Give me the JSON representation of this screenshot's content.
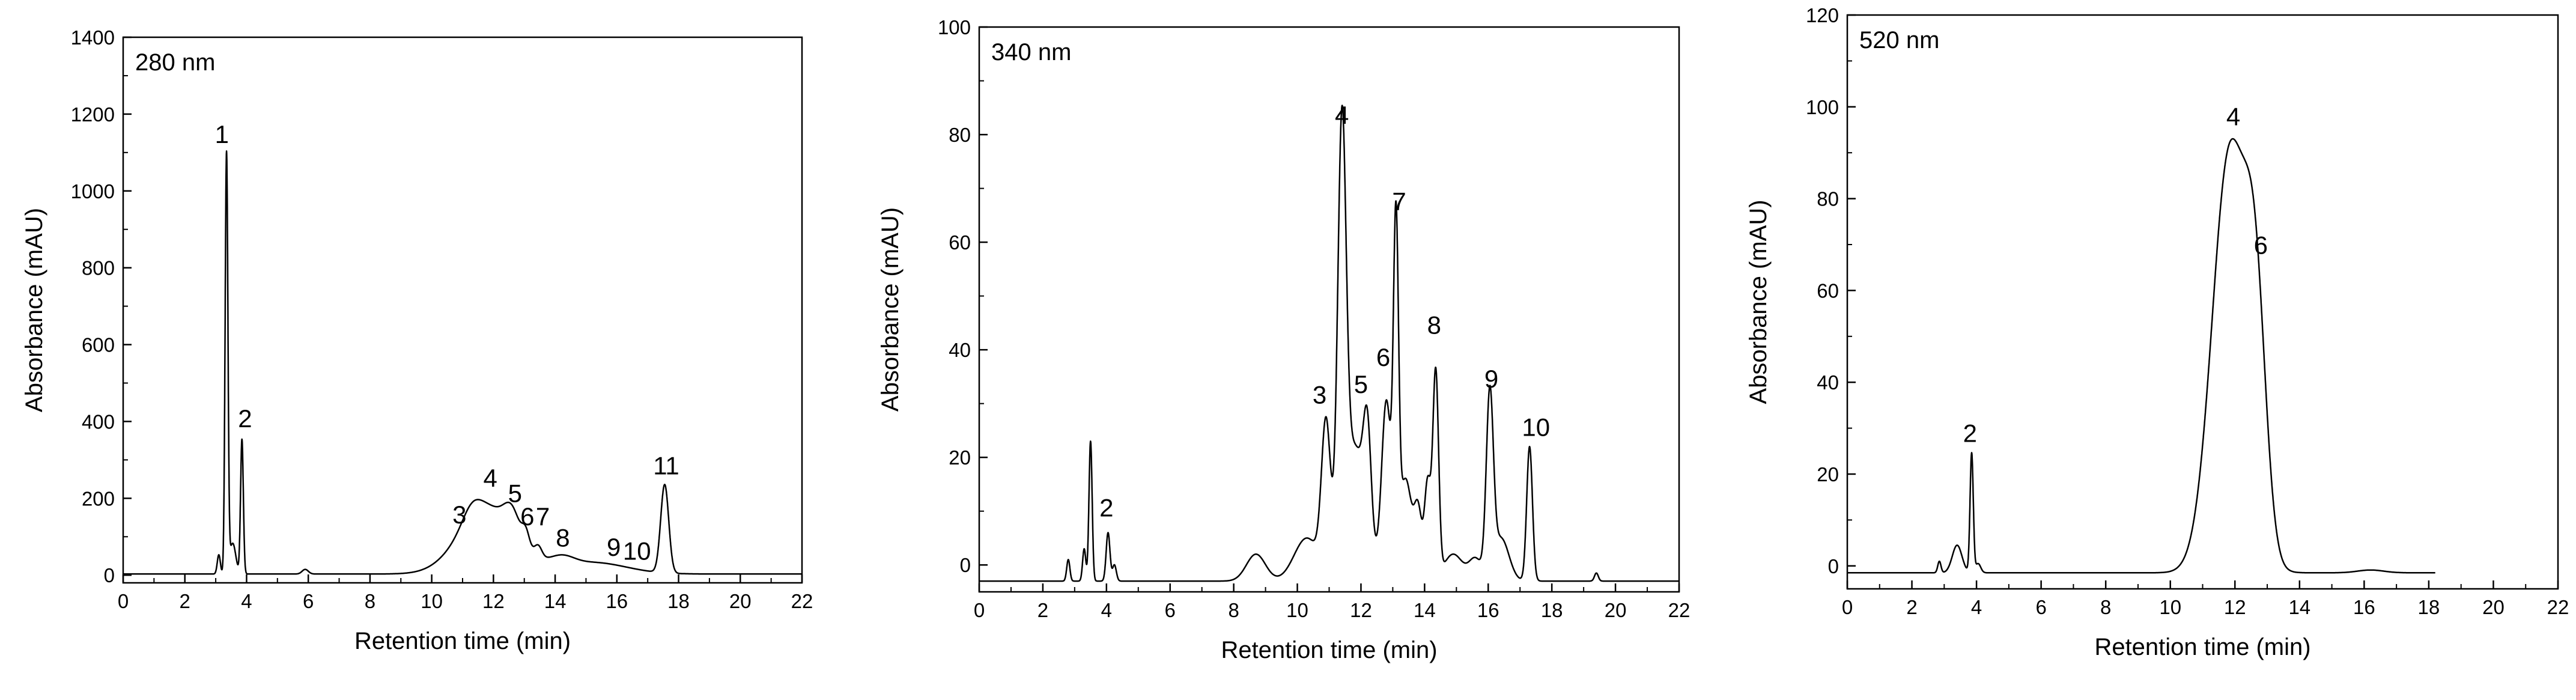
{
  "figure": {
    "colors": {
      "line": "#000000",
      "axis": "#000000",
      "background": "#ffffff"
    }
  },
  "chart_data": [
    {
      "type": "line",
      "panel_label": "280 nm",
      "xlabel": "Retention time (min)",
      "ylabel": "Absorbance (mAU)",
      "xlim": [
        0,
        22
      ],
      "ylim": [
        -20,
        1400
      ],
      "xticks": [
        0,
        2,
        4,
        6,
        8,
        10,
        12,
        14,
        16,
        18,
        20,
        22
      ],
      "yticks": [
        0,
        200,
        400,
        600,
        800,
        1000,
        1200,
        1400
      ],
      "grid": false,
      "baseline": 3,
      "peaks": [
        {
          "x": 3.1,
          "y": 50,
          "w": 0.05
        },
        {
          "x": 3.35,
          "y": 1090,
          "w": 0.045
        },
        {
          "x": 3.55,
          "y": 80,
          "w": 0.1
        },
        {
          "x": 3.85,
          "y": 350,
          "w": 0.045
        },
        {
          "x": 5.9,
          "y": 12,
          "w": 0.1
        },
        {
          "x": 11.8,
          "y": 175,
          "w": 0.9
        },
        {
          "x": 11.3,
          "y": 35,
          "w": 0.3
        },
        {
          "x": 12.6,
          "y": 60,
          "w": 0.25
        },
        {
          "x": 13.05,
          "y": 40,
          "w": 0.12
        },
        {
          "x": 13.45,
          "y": 30,
          "w": 0.12
        },
        {
          "x": 14.2,
          "y": 25,
          "w": 0.4
        },
        {
          "x": 15.2,
          "y": 30,
          "w": 1.1
        },
        {
          "x": 17.55,
          "y": 230,
          "w": 0.13
        }
      ],
      "annotations": [
        {
          "text": "1",
          "x": 3.2,
          "y": 1125
        },
        {
          "text": "2",
          "x": 3.95,
          "y": 385
        },
        {
          "text": "3",
          "x": 10.9,
          "y": 135
        },
        {
          "text": "4",
          "x": 11.9,
          "y": 230
        },
        {
          "text": "5",
          "x": 12.7,
          "y": 190
        },
        {
          "text": "6",
          "x": 13.1,
          "y": 130
        },
        {
          "text": "7",
          "x": 13.6,
          "y": 130
        },
        {
          "text": "8",
          "x": 14.25,
          "y": 75
        },
        {
          "text": "9",
          "x": 15.9,
          "y": 50
        },
        {
          "text": "10",
          "x": 16.65,
          "y": 40
        },
        {
          "text": "11",
          "x": 17.6,
          "y": 262
        }
      ]
    },
    {
      "type": "line",
      "panel_label": "340 nm",
      "xlabel": "Retention time (min)",
      "ylabel": "Absorbance (mAU)",
      "xlim": [
        0,
        22
      ],
      "ylim": [
        -5,
        100
      ],
      "xticks": [
        0,
        2,
        4,
        6,
        8,
        10,
        12,
        14,
        16,
        18,
        20,
        22
      ],
      "yticks": [
        0,
        20,
        40,
        60,
        80,
        100
      ],
      "grid": false,
      "baseline": -3,
      "peaks": [
        {
          "x": 2.8,
          "y": 4,
          "w": 0.05
        },
        {
          "x": 3.3,
          "y": 6,
          "w": 0.05
        },
        {
          "x": 3.5,
          "y": 26,
          "w": 0.05
        },
        {
          "x": 4.05,
          "y": 9,
          "w": 0.06
        },
        {
          "x": 4.25,
          "y": 3,
          "w": 0.06
        },
        {
          "x": 8.7,
          "y": 5,
          "w": 0.3
        },
        {
          "x": 10.3,
          "y": 8,
          "w": 0.4
        },
        {
          "x": 10.9,
          "y": 27,
          "w": 0.14
        },
        {
          "x": 11.4,
          "y": 75,
          "w": 0.13
        },
        {
          "x": 11.8,
          "y": 25,
          "w": 0.35
        },
        {
          "x": 12.2,
          "y": 19,
          "w": 0.12
        },
        {
          "x": 12.8,
          "y": 33,
          "w": 0.15
        },
        {
          "x": 13.1,
          "y": 60,
          "w": 0.08
        },
        {
          "x": 13.4,
          "y": 19,
          "w": 0.2
        },
        {
          "x": 13.8,
          "y": 12,
          "w": 0.12
        },
        {
          "x": 14.1,
          "y": 18,
          "w": 0.1
        },
        {
          "x": 14.35,
          "y": 38,
          "w": 0.09
        },
        {
          "x": 14.9,
          "y": 5,
          "w": 0.3
        },
        {
          "x": 15.6,
          "y": 4,
          "w": 0.2
        },
        {
          "x": 16.05,
          "y": 33,
          "w": 0.11
        },
        {
          "x": 16.4,
          "y": 8,
          "w": 0.25
        },
        {
          "x": 17.3,
          "y": 25,
          "w": 0.09
        },
        {
          "x": 19.4,
          "y": 1.5,
          "w": 0.06
        }
      ],
      "annotations": [
        {
          "text": "2",
          "x": 4.0,
          "y": 9
        },
        {
          "text": "3",
          "x": 10.7,
          "y": 30
        },
        {
          "text": "4",
          "x": 11.4,
          "y": 82
        },
        {
          "text": "5",
          "x": 12.0,
          "y": 32
        },
        {
          "text": "6",
          "x": 12.7,
          "y": 37
        },
        {
          "text": "7",
          "x": 13.2,
          "y": 66
        },
        {
          "text": "8",
          "x": 14.3,
          "y": 43
        },
        {
          "text": "9",
          "x": 16.1,
          "y": 33
        },
        {
          "text": "10",
          "x": 17.5,
          "y": 24
        }
      ]
    },
    {
      "type": "line",
      "panel_label": "520 nm",
      "xlabel": "Retention time (min)",
      "ylabel": "Absorbance (mAU)",
      "xlim": [
        0,
        22
      ],
      "ylim": [
        -5,
        120
      ],
      "xticks": [
        0,
        2,
        4,
        6,
        8,
        10,
        12,
        14,
        16,
        18,
        20,
        22
      ],
      "yticks": [
        0,
        20,
        40,
        60,
        80,
        100,
        120
      ],
      "grid": false,
      "baseline": -1.5,
      "x_end": 18.2,
      "peaks": [
        {
          "x": 2.85,
          "y": 2.5,
          "w": 0.05
        },
        {
          "x": 3.4,
          "y": 6,
          "w": 0.15
        },
        {
          "x": 3.85,
          "y": 26,
          "w": 0.05
        },
        {
          "x": 4.05,
          "y": 2,
          "w": 0.08
        },
        {
          "x": 11.85,
          "y": 92,
          "w": 0.55
        },
        {
          "x": 12.65,
          "y": 44,
          "w": 0.32
        },
        {
          "x": 16.2,
          "y": 0.6,
          "w": 0.4
        }
      ],
      "annotations": [
        {
          "text": "2",
          "x": 3.8,
          "y": 27
        },
        {
          "text": "4",
          "x": 11.95,
          "y": 96
        },
        {
          "text": "6",
          "x": 12.8,
          "y": 68
        }
      ]
    }
  ]
}
